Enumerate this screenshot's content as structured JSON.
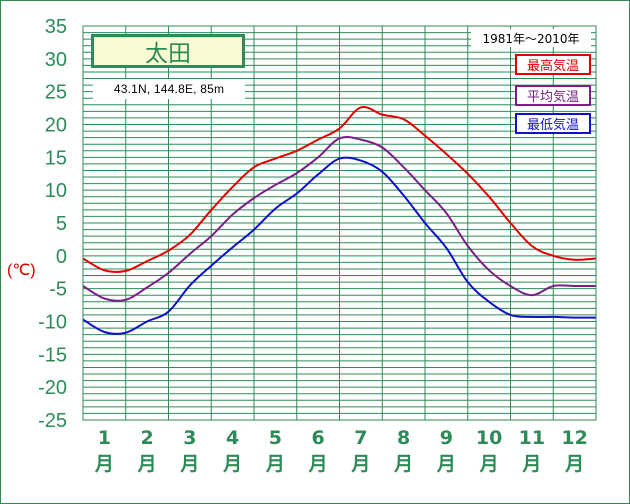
{
  "station": {
    "name": "太田",
    "coords": "43.1N,  144.8E,  85m",
    "period": "1981年～2010年"
  },
  "colors": {
    "axis": "#2e8b57",
    "grid": "#2e8b57",
    "max": "#e00000",
    "mean": "#7a1f86",
    "min": "#1010c8",
    "unit": "#d40000"
  },
  "chart_data": {
    "type": "line",
    "ylabel": "(℃)",
    "ylim": [
      -25,
      35
    ],
    "yticks": [
      35,
      30,
      25,
      20,
      15,
      10,
      5,
      0,
      -5,
      -10,
      -15,
      -20,
      -25
    ],
    "categories": [
      "1月",
      "2月",
      "3月",
      "4月",
      "5月",
      "6月",
      "7月",
      "8月",
      "9月",
      "10月",
      "11月",
      "12月"
    ],
    "month_numbers": [
      "1",
      "2",
      "3",
      "4",
      "5",
      "6",
      "7",
      "8",
      "9",
      "10",
      "11",
      "12"
    ],
    "month_suffix": "月",
    "grid": true,
    "legend_position": "top-right",
    "series": [
      {
        "name": "最高気温",
        "color": "#e00000",
        "x": [
          0.0,
          0.5,
          1.0,
          1.5,
          2.0,
          2.5,
          3.0,
          3.5,
          4.0,
          4.5,
          5.0,
          5.5,
          6.0,
          6.5,
          7.0,
          7.5,
          8.0,
          8.5,
          9.0,
          9.5,
          10.0,
          10.5,
          11.0,
          11.5,
          12.0
        ],
        "values": [
          -0.4,
          -2.2,
          -2.3,
          -0.8,
          0.8,
          3.2,
          7.0,
          10.5,
          13.5,
          14.8,
          16.0,
          17.7,
          19.4,
          22.6,
          21.5,
          20.8,
          18.3,
          15.5,
          12.5,
          9.0,
          5.0,
          1.5,
          0.0,
          -0.6,
          -0.4
        ]
      },
      {
        "name": "平均気温",
        "color": "#7a1f86",
        "x": [
          0.0,
          0.5,
          1.0,
          1.5,
          2.0,
          2.5,
          3.0,
          3.5,
          4.0,
          4.5,
          5.0,
          5.5,
          6.0,
          6.5,
          7.0,
          7.5,
          8.0,
          8.5,
          9.0,
          9.5,
          10.0,
          10.5,
          11.0,
          11.5,
          12.0
        ],
        "values": [
          -4.6,
          -6.5,
          -6.7,
          -4.8,
          -2.6,
          0.3,
          3.0,
          6.3,
          8.8,
          10.8,
          12.6,
          15.0,
          17.9,
          17.7,
          16.5,
          13.5,
          10.0,
          6.5,
          1.5,
          -2.2,
          -4.6,
          -6.0,
          -4.6,
          -4.6,
          -4.6
        ]
      },
      {
        "name": "最低気温",
        "color": "#1010c8",
        "x": [
          0.0,
          0.5,
          1.0,
          1.5,
          2.0,
          2.5,
          3.0,
          3.5,
          4.0,
          4.5,
          5.0,
          5.5,
          6.0,
          6.5,
          7.0,
          7.5,
          8.0,
          8.5,
          9.0,
          9.5,
          10.0,
          10.5,
          11.0,
          11.5,
          12.0
        ],
        "values": [
          -9.7,
          -11.6,
          -11.7,
          -10.0,
          -8.5,
          -4.5,
          -1.5,
          1.3,
          4.0,
          7.2,
          9.5,
          12.4,
          14.8,
          14.5,
          12.8,
          9.2,
          5.0,
          1.2,
          -4.0,
          -7.0,
          -9.0,
          -9.3,
          -9.3,
          -9.4,
          -9.4
        ]
      }
    ]
  }
}
